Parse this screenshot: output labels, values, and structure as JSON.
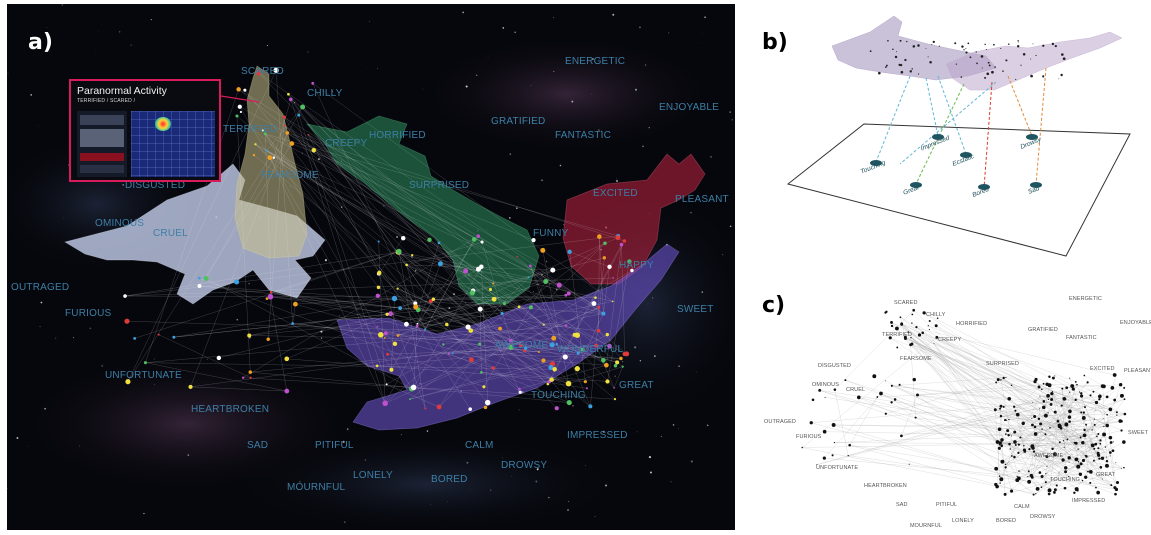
{
  "panel_labels": {
    "a": "a)",
    "b": "b)",
    "c": "c)"
  },
  "inset": {
    "title": "Paranormal Activity",
    "subtitle": "TERRIFIED / SCARED /"
  },
  "words": {
    "scared": "SCARED",
    "chilly": "CHILLY",
    "horrified": "HORRIFIED",
    "terrified": "TERRIFIED",
    "creepy": "CREEPY",
    "energetic": "ENERGETIC",
    "enjoyable": "ENJOYABLE",
    "gratified": "GRATIFIED",
    "fantastic": "FANTASTIC",
    "disgusted": "DISGUSTED",
    "fearsome": "FEARSOME",
    "surprised": "SURPRISED",
    "excited": "EXCITED",
    "pleasant": "PLEASANT",
    "ominous": "OMINOUS",
    "cruel": "CRUEL",
    "funny": "FUNNY",
    "happy": "HAPPY",
    "outraged": "OUTRAGED",
    "furious": "FURIOUS",
    "sweet": "SWEET",
    "awesome": "AWESOME",
    "wonderful": "WONDERFUL",
    "unfortunate": "UNFORTUNATE",
    "great": "GREAT",
    "touching": "TOUCHING",
    "heartbroken": "HEARTBROKEN",
    "impressed": "IMPRESSED",
    "sad": "SAD",
    "pitiful": "PITIFUL",
    "calm": "CALM",
    "drowsy": "DROWSY",
    "lonely": "LONELY",
    "bored": "BORED",
    "mournful": "MOURNFUL"
  },
  "plane_labels": {
    "impressed": "Impressed",
    "touching": "Touching",
    "ecstatic": "Ecstatic",
    "drowsy": "Drowsy",
    "great": "Great",
    "bored": "Bored",
    "sad": "Sad"
  },
  "colors": {
    "panel_a_bg": "#06070c",
    "word_blue": "#3d7fa6",
    "inset_border": "#d81b5a",
    "figure_white": "#c9d4f2",
    "figure_yellow": "#c9c08a",
    "figure_green": "#2e8f5e",
    "figure_red": "#b8233f",
    "figure_purple": "#6a52c9",
    "plane_node": "#1f5560"
  }
}
